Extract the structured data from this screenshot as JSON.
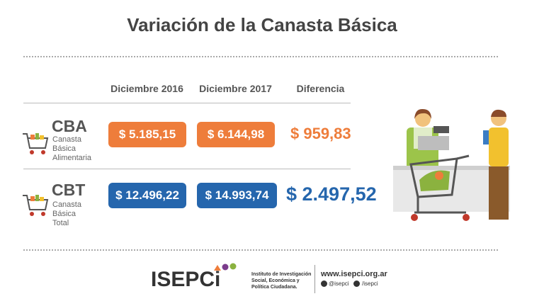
{
  "title": "Variación de la Canasta Básica",
  "table": {
    "headers": [
      "Diciembre 2016",
      "Diciembre 2017",
      "Diferencia"
    ],
    "rows": [
      {
        "code": "CBA",
        "description": [
          "Canasta",
          "Básica",
          "Alimentaria"
        ],
        "values": [
          "$ 5.185,15",
          "$ 6.144,98",
          "$ 959,83"
        ]
      },
      {
        "code": "CBT",
        "description": [
          "Canasta",
          "Básica",
          "Total"
        ],
        "values": [
          "$ 12.496,22",
          "$ 14.993,74",
          "$ 2.497,52"
        ]
      }
    ]
  },
  "footer": {
    "logo": "ISEPCi",
    "institute": [
      "Instituto de Investigación",
      "Social, Económica y",
      "Política Ciudadana."
    ],
    "website": "www.isepci.org.ar",
    "twitter": "@isepci",
    "facebook": "/isepci"
  }
}
